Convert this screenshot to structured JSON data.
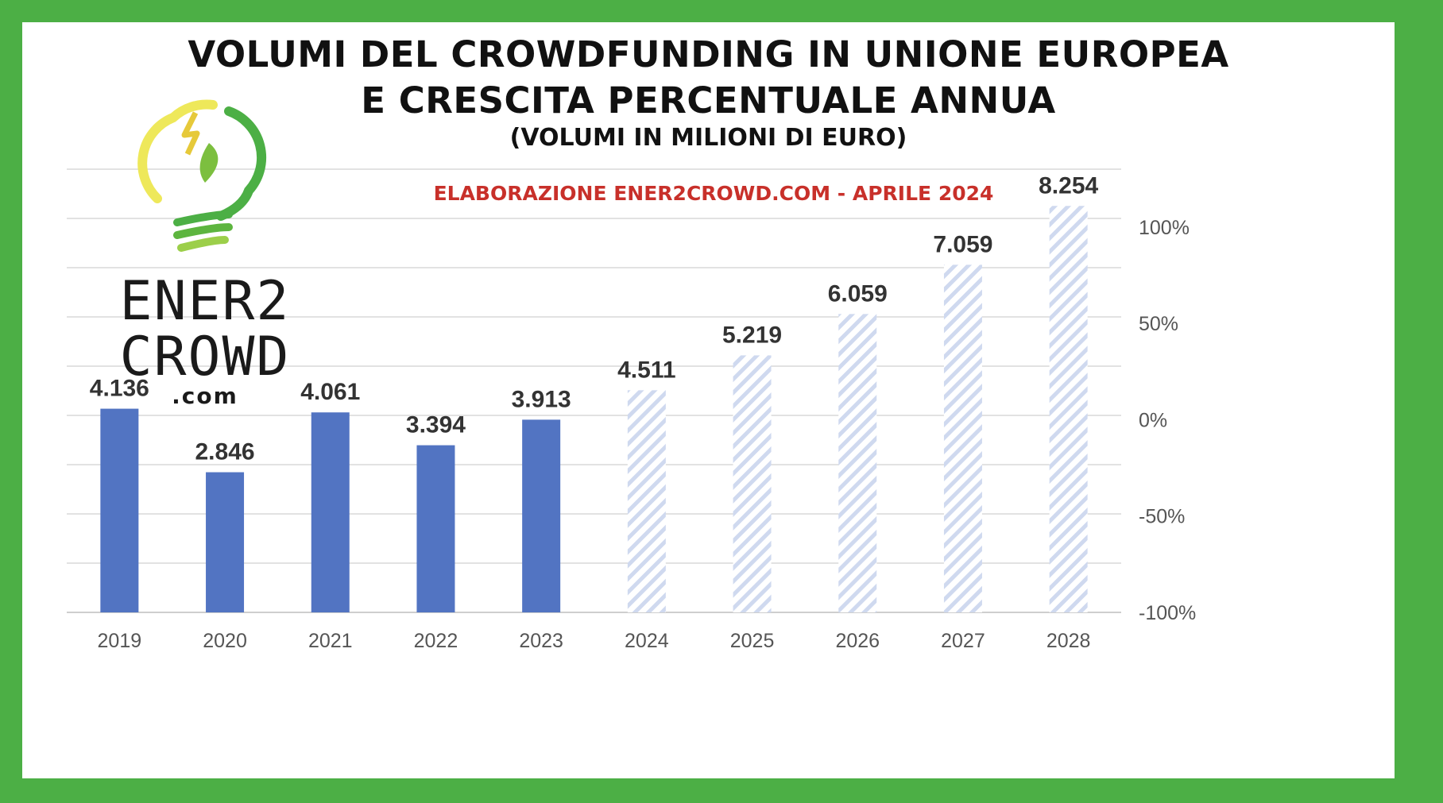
{
  "title_line1": "VOLUMI DEL CROWDFUNDING IN UNIONE EUROPEA",
  "title_line2": "E CRESCITA PERCENTUALE ANNUA",
  "subtitle": "(VOLUMI IN MILIONI DI EURO)",
  "source_note": "ELABORAZIONE ENER2CROWD.COM - APRILE 2024",
  "logo": {
    "line1": "ENER2",
    "line2": "CROWD",
    "line3": ".com"
  },
  "colors": {
    "frame": "#4caf45",
    "actual_bar": "#5274c2",
    "forecast_hatch": "#cfd9ef",
    "source_note": "#c8302a"
  },
  "chart_data": {
    "type": "bar",
    "categories": [
      "2019",
      "2020",
      "2021",
      "2022",
      "2023",
      "2024",
      "2025",
      "2026",
      "2027",
      "2028"
    ],
    "values": [
      4136,
      2846,
      4061,
      3394,
      3913,
      4511,
      5219,
      6059,
      7059,
      8254
    ],
    "value_labels": [
      "4.136",
      "2.846",
      "4.061",
      "3.394",
      "3.913",
      "4.511",
      "5.219",
      "6.059",
      "7.059",
      "8.254"
    ],
    "bar_style": [
      "solid",
      "solid",
      "solid",
      "solid",
      "solid",
      "hatched",
      "hatched",
      "hatched",
      "hatched",
      "hatched"
    ],
    "y_range": [
      0,
      9000
    ],
    "y2_ticks": [
      "100%",
      "50%",
      "0%",
      "-50%",
      "-100%"
    ],
    "y2_range": [
      -100,
      130
    ],
    "grid": true
  }
}
